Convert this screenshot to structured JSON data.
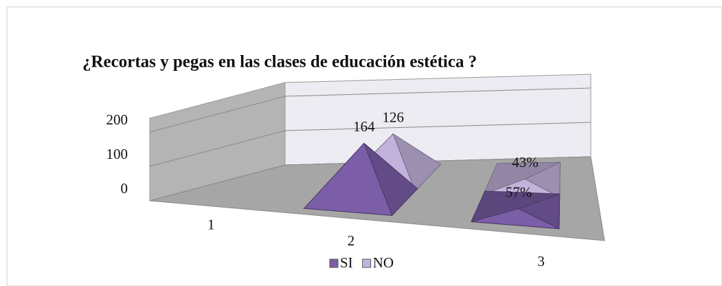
{
  "chart_data": {
    "type": "pyramid",
    "title": "¿Recortas y pegas en las clases de educación estética ?",
    "categories": [
      "1",
      "2",
      "3"
    ],
    "series": [
      {
        "name": "SI",
        "color": "#7b5ea7",
        "values": [
          null,
          164,
          0.57
        ],
        "value_labels": [
          null,
          "164",
          "57%"
        ]
      },
      {
        "name": "NO",
        "color": "#c3b3dc",
        "values": [
          null,
          126,
          0.43
        ],
        "value_labels": [
          null,
          "126",
          "43%"
        ]
      }
    ],
    "ylim": [
      0,
      240
    ],
    "yticks": [
      0,
      100,
      200
    ],
    "grid": true,
    "legend": "bottom"
  }
}
